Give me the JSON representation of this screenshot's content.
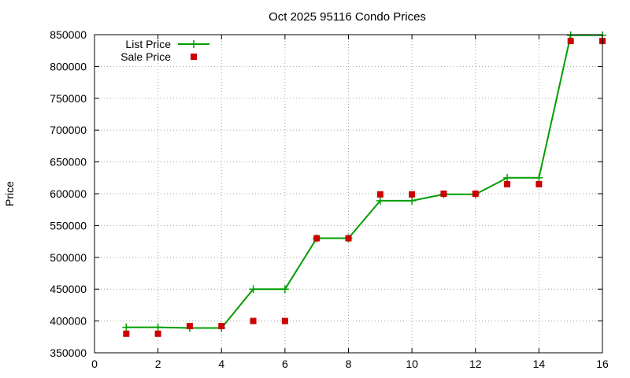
{
  "chart_data": {
    "type": "line",
    "title": "Oct 2025 95116 Condo Prices",
    "xlabel": "",
    "ylabel": "Price",
    "xlim": [
      0,
      16
    ],
    "ylim": [
      350000,
      850000
    ],
    "xticks": [
      0,
      2,
      4,
      6,
      8,
      10,
      12,
      14,
      16
    ],
    "yticks": [
      350000,
      400000,
      450000,
      500000,
      550000,
      600000,
      650000,
      700000,
      750000,
      800000,
      850000
    ],
    "grid": true,
    "legend_position": "top-left",
    "series": [
      {
        "name": "List Price",
        "style": "linespoints",
        "color": "#009e00",
        "x": [
          1,
          2,
          3,
          4,
          5,
          6,
          7,
          8,
          9,
          10,
          11,
          12,
          13,
          14,
          15,
          16
        ],
        "y": [
          390000,
          390000,
          389000,
          389000,
          450000,
          450000,
          530000,
          530000,
          589000,
          589000,
          599000,
          599000,
          625000,
          625000,
          849000,
          849000
        ]
      },
      {
        "name": "Sale Price",
        "style": "points",
        "color": "#cc0000",
        "x": [
          1,
          2,
          3,
          4,
          5,
          6,
          7,
          8,
          9,
          10,
          11,
          12,
          13,
          14,
          15,
          16
        ],
        "y": [
          380000,
          380000,
          392000,
          392000,
          400000,
          400000,
          530000,
          530000,
          599000,
          599000,
          600000,
          600000,
          615000,
          615000,
          840000,
          840000
        ]
      }
    ]
  }
}
